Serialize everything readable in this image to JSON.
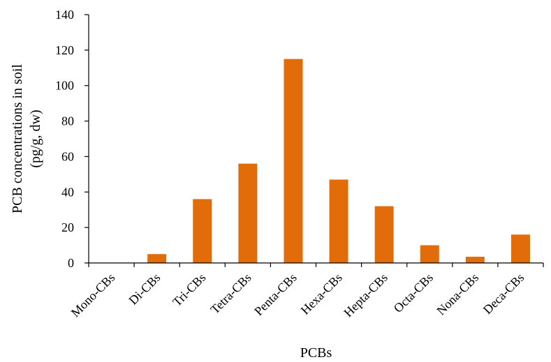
{
  "chart_data": {
    "type": "bar",
    "title": "",
    "xlabel": "PCBs",
    "ylabel_lines": [
      "PCB concentrations in soil",
      "(pg/g, dw)"
    ],
    "categories": [
      "Mono-CBs",
      "Di-CBs",
      "Tri-CBs",
      "Tetra-CBs",
      "Penta-CBs",
      "Hexa-CBs",
      "Hepta-CBs",
      "Octa-CBs",
      "Nona-CBs",
      "Deca-CBs"
    ],
    "values": [
      0,
      5,
      36,
      56,
      115,
      47,
      32,
      10,
      3.5,
      16
    ],
    "ylim": [
      0,
      140
    ],
    "yticks": [
      0,
      20,
      40,
      60,
      80,
      100,
      120,
      140
    ],
    "grid": false,
    "legend": "none",
    "bar_color": "#E36C0A"
  }
}
